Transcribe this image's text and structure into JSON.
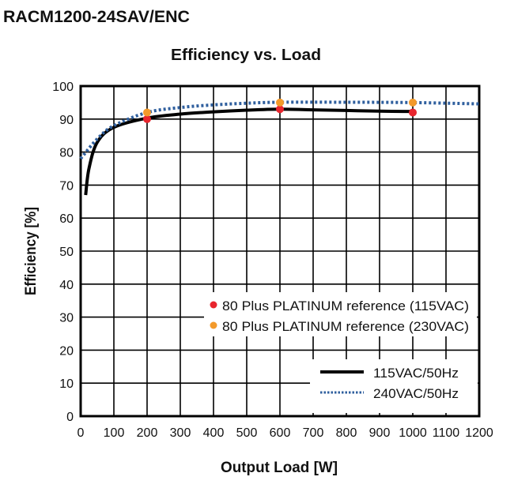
{
  "header": {
    "model": "RACM1200-24SAV/ENC"
  },
  "chart_data": {
    "type": "line",
    "title": "Efficiency vs. Load",
    "xlabel": "Output Load [W]",
    "ylabel": "Efficiency [%]",
    "xlim": [
      0,
      1200
    ],
    "ylim": [
      0,
      100
    ],
    "xticks": [
      0,
      100,
      200,
      300,
      400,
      500,
      600,
      700,
      800,
      900,
      1000,
      1100,
      1200
    ],
    "yticks": [
      0,
      10,
      20,
      30,
      40,
      50,
      60,
      70,
      80,
      90,
      100
    ],
    "grid": true,
    "legend_placement": "bottom-right",
    "series": [
      {
        "name": "115VAC/50Hz",
        "style": "solid",
        "color": "#000000",
        "x": [
          15,
          25,
          50,
          100,
          200,
          300,
          400,
          500,
          600,
          700,
          800,
          900,
          1000
        ],
        "y": [
          67,
          75,
          83,
          87.5,
          90.3,
          91.5,
          92.2,
          92.7,
          93,
          92.8,
          92.6,
          92.4,
          92.3
        ]
      },
      {
        "name": "240VAC/50Hz",
        "style": "dotted",
        "color": "#2f5f9e",
        "x": [
          0,
          50,
          100,
          200,
          300,
          400,
          500,
          600,
          800,
          1000,
          1200
        ],
        "y": [
          78,
          84,
          88,
          92,
          93.5,
          94.3,
          94.8,
          95.1,
          95.1,
          95,
          94.6
        ]
      }
    ],
    "reference_points": [
      {
        "name": "80 Plus PLATINUM reference (115VAC)",
        "color": "#e8252e",
        "x": [
          200,
          600,
          1000
        ],
        "y": [
          90,
          93,
          92
        ]
      },
      {
        "name": "80 Plus PLATINUM reference (230VAC)",
        "color": "#f39a2b",
        "x": [
          200,
          600,
          1000
        ],
        "y": [
          92,
          95,
          95
        ]
      }
    ]
  }
}
